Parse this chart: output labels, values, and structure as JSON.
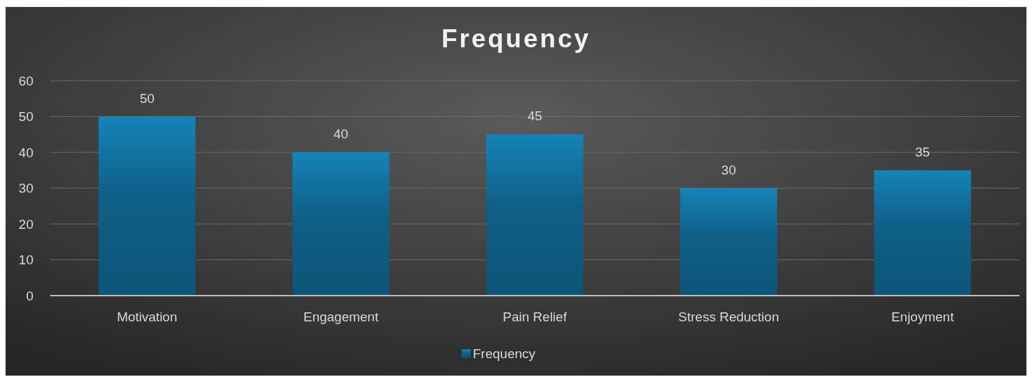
{
  "chart_data": {
    "type": "bar",
    "title": "Frequency",
    "categories": [
      "Motivation",
      "Engagement",
      "Pain Relief",
      "Stress Reduction",
      "Enjoyment"
    ],
    "series": [
      {
        "name": "Frequency",
        "color": "#0f5f86",
        "values": [
          50,
          40,
          45,
          30,
          35
        ]
      }
    ],
    "ylim": [
      0,
      60
    ],
    "yticks": [
      0,
      10,
      20,
      30,
      40,
      50,
      60
    ],
    "grid": "y",
    "data_labels": true,
    "legend": "bottom"
  }
}
